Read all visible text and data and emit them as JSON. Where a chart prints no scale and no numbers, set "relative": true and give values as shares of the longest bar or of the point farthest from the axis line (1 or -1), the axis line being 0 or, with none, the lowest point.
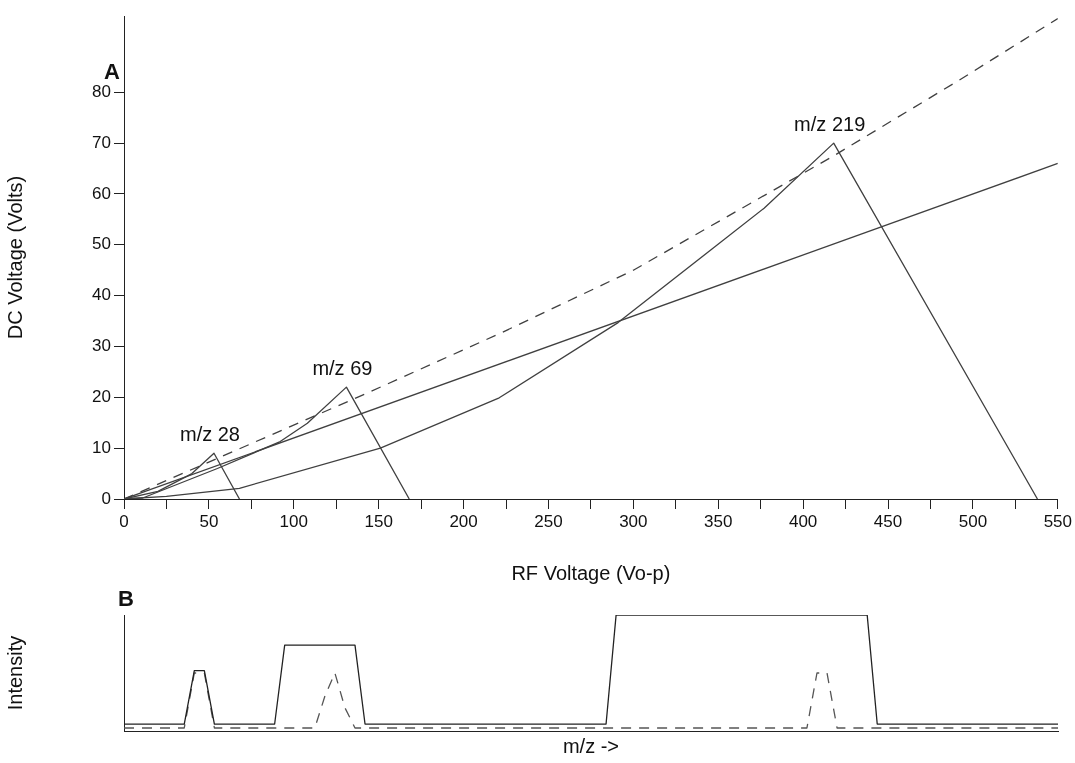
{
  "chart_data": [
    {
      "type": "line",
      "xlabel": "RF Voltage (Vo-p)",
      "ylabel": "DC Voltage (Volts)",
      "xlim": [
        0,
        550
      ],
      "ylim": [
        0,
        95
      ],
      "xticks": [
        0,
        {
          "value": 25,
          "label": null
        },
        50,
        {
          "value": 75,
          "label": null
        },
        100,
        {
          "value": 125,
          "label": null
        },
        150,
        {
          "value": 175,
          "label": null
        },
        200,
        {
          "value": 225,
          "label": null
        },
        250,
        {
          "value": 275,
          "label": null
        },
        300,
        {
          "value": 325,
          "label": null
        },
        350,
        {
          "value": 375,
          "label": null
        },
        400,
        {
          "value": 425,
          "label": null
        },
        450,
        {
          "value": 475,
          "label": null
        },
        500,
        {
          "value": 525,
          "label": null
        },
        550
      ],
      "yticks": [
        0,
        10,
        20,
        30,
        40,
        50,
        60,
        70,
        80
      ],
      "grid": false,
      "legend": false,
      "marker": "none",
      "annotations": [
        "A",
        {
          "text": "m/z 28",
          "x": 53,
          "y": 9
        },
        {
          "text": "m/z 69",
          "x": 131,
          "y": 22
        },
        {
          "text": "m/z 219",
          "x": 418,
          "y": 70
        }
      ],
      "series": [
        {
          "color": "#404040",
          "line_style": "solid",
          "x": [
            0,
            20,
            40,
            53,
            68
          ],
          "values": [
            0,
            1.5,
            5,
            9,
            0
          ]
        },
        {
          "color": "#404040",
          "line_style": "solid",
          "x": [
            0,
            11,
            55,
            92,
            108,
            131,
            168
          ],
          "values": [
            0,
            0.2,
            6,
            11.3,
            14.9,
            22,
            0
          ]
        },
        {
          "color": "#404040",
          "line_style": "solid",
          "x": [
            0,
            25,
            68,
            151,
            221,
            291,
            377,
            418,
            538
          ],
          "values": [
            0,
            0.5,
            2.1,
            10,
            19.9,
            34.7,
            57.2,
            70,
            0
          ]
        },
        {
          "color": "#404040",
          "line_style": "solid",
          "x": [
            0,
            550
          ],
          "values": [
            0,
            66
          ]
        },
        {
          "color": "#404040",
          "line_style": "dashed",
          "x": [
            0,
            64,
            143,
            221,
            300,
            418,
            492,
            550
          ],
          "values": [
            0,
            9.3,
            20.8,
            32.5,
            45,
            67.5,
            82.4,
            94.5
          ]
        }
      ]
    },
    {
      "type": "line",
      "xlabel": "m/z ->",
      "ylabel": "Intensity",
      "relative": true,
      "tick_labels": false,
      "grid": false,
      "legend": false,
      "marker": "none",
      "annotations": [
        "B"
      ],
      "categories": [
        null,
        null,
        null,
        null,
        null,
        null,
        null,
        null,
        null,
        null,
        null,
        null,
        null,
        null,
        null,
        null,
        null,
        null,
        null,
        null,
        null,
        null,
        null,
        null,
        null,
        null,
        null,
        null,
        null,
        null,
        null,
        null,
        null,
        null,
        null,
        null,
        null,
        null,
        null,
        null,
        null,
        null,
        null,
        null,
        null,
        null,
        null,
        null,
        null,
        null,
        null,
        null,
        null,
        null,
        null,
        null,
        null,
        null,
        null,
        null,
        null,
        null,
        null,
        null,
        null,
        null,
        null,
        null,
        null,
        null,
        null,
        null,
        null,
        null,
        null,
        null,
        null,
        null,
        null,
        null,
        null,
        null,
        null,
        null,
        null,
        null,
        null,
        null,
        null,
        null,
        null,
        null,
        null,
        null
      ],
      "series": [
        {
          "color": "#222222",
          "line_style": "solid",
          "values": [
            0.06,
            0.06,
            0.06,
            0.06,
            0.06,
            0.06,
            0.06,
            0.52,
            0.52,
            0.06,
            0.06,
            0.06,
            0.06,
            0.06,
            0.06,
            0.06,
            0.74,
            0.74,
            0.74,
            0.74,
            0.74,
            0.74,
            0.74,
            0.74,
            0.06,
            0.06,
            0.06,
            0.06,
            0.06,
            0.06,
            0.06,
            0.06,
            0.06,
            0.06,
            0.06,
            0.06,
            0.06,
            0.06,
            0.06,
            0.06,
            0.06,
            0.06,
            0.06,
            0.06,
            0.06,
            0.06,
            0.06,
            0.06,
            0.06,
            1,
            1,
            1,
            1,
            1,
            1,
            1,
            1,
            1,
            1,
            1,
            1,
            1,
            1,
            1,
            1,
            1,
            1,
            1,
            1,
            1,
            1,
            1,
            1,
            1,
            1,
            0.06,
            0.06,
            0.06,
            0.06,
            0.06,
            0.06,
            0.06,
            0.06,
            0.06,
            0.06,
            0.06,
            0.06,
            0.06,
            0.06,
            0.06,
            0.06,
            0.06,
            0.06,
            0.06
          ]
        },
        {
          "color": "#555555",
          "line_style": "dashed",
          "values": [
            0.026,
            0.026,
            0.026,
            0.026,
            0.026,
            0.026,
            0.026,
            0.5,
            0.5,
            0.026,
            0.026,
            0.026,
            0.026,
            0.026,
            0.026,
            0.026,
            0.026,
            0.026,
            0.026,
            0.026,
            0.3,
            0.5,
            0.2,
            0.026,
            0.026,
            0.026,
            0.026,
            0.026,
            0.026,
            0.026,
            0.026,
            0.026,
            0.026,
            0.026,
            0.026,
            0.026,
            0.026,
            0.026,
            0.026,
            0.026,
            0.026,
            0.026,
            0.026,
            0.026,
            0.026,
            0.026,
            0.026,
            0.026,
            0.026,
            0.026,
            0.026,
            0.026,
            0.026,
            0.026,
            0.026,
            0.026,
            0.026,
            0.026,
            0.026,
            0.026,
            0.026,
            0.026,
            0.026,
            0.026,
            0.026,
            0.026,
            0.026,
            0.026,
            0.026,
            0.5,
            0.5,
            0.026,
            0.026,
            0.026,
            0.026,
            0.026,
            0.026,
            0.026,
            0.026,
            0.026,
            0.026,
            0.026,
            0.026,
            0.026,
            0.026,
            0.026,
            0.026,
            0.026,
            0.026,
            0.026,
            0.026,
            0.026,
            0.026,
            0.026
          ]
        }
      ]
    }
  ]
}
